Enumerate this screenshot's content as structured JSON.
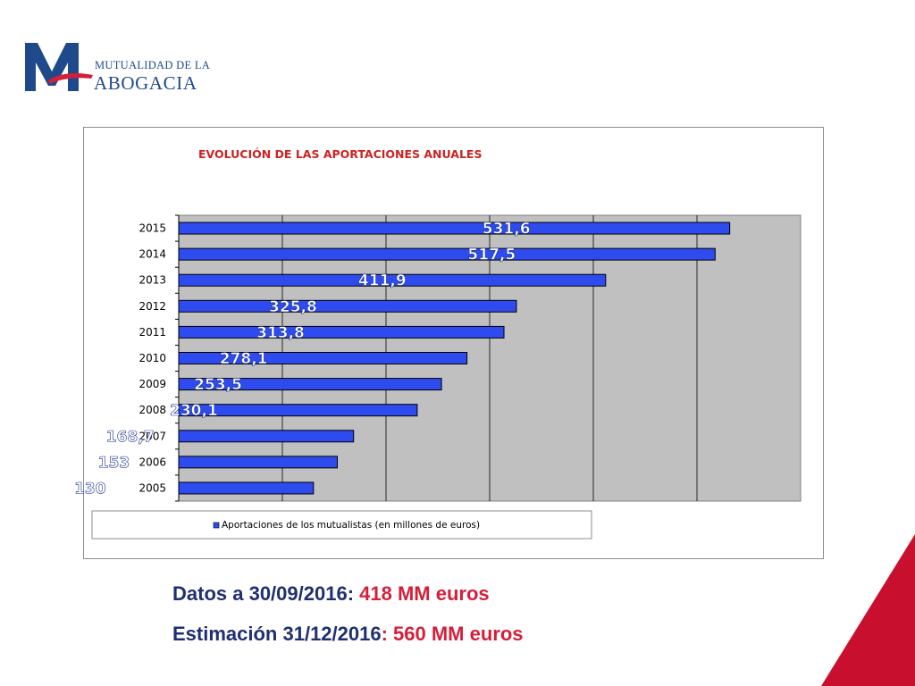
{
  "logo": {
    "line1": "MUTUALIDAD DE LA",
    "line2": "ABOGACIA",
    "colors": {
      "blue": "#1e4a8c",
      "red": "#d51f3a"
    }
  },
  "chart_data": {
    "type": "bar",
    "orientation": "horizontal",
    "title": "EVOLUCIÓN DE LAS APORTACIONES ANUALES",
    "categories": [
      "2015",
      "2014",
      "2013",
      "2012",
      "2011",
      "2010",
      "2009",
      "2008",
      "2007",
      "2006",
      "2005"
    ],
    "value_labels": [
      "531,6",
      "517,5",
      "411,9",
      "325,8",
      "313,8",
      "278,1",
      "253,5",
      "230,1",
      "168,7",
      "153",
      "130"
    ],
    "series": [
      {
        "name": "Aportaciones de los mutualistas (en millones de euros)",
        "values": [
          531.6,
          517.5,
          411.9,
          325.8,
          313.8,
          278.1,
          253.5,
          230.1,
          168.7,
          153,
          130
        ],
        "color": "#2e4bf0"
      }
    ],
    "xlim": [
      0,
      600
    ],
    "xticks": [
      0,
      100,
      200,
      300,
      400,
      500,
      600
    ],
    "show_x_tick_labels": false,
    "grid": true,
    "plot_background": "#c0c0c0",
    "legend_position": "bottom"
  },
  "notes": [
    {
      "label": "Datos a 30/09/2016:",
      "value": "418 MM euros"
    },
    {
      "label": "Estimación 31/12/2016",
      "value": ": 560 MM euros"
    }
  ],
  "colors": {
    "note_label": "#1f2f70",
    "note_value": "#d51f3a",
    "corner_red": "#c8102e"
  }
}
